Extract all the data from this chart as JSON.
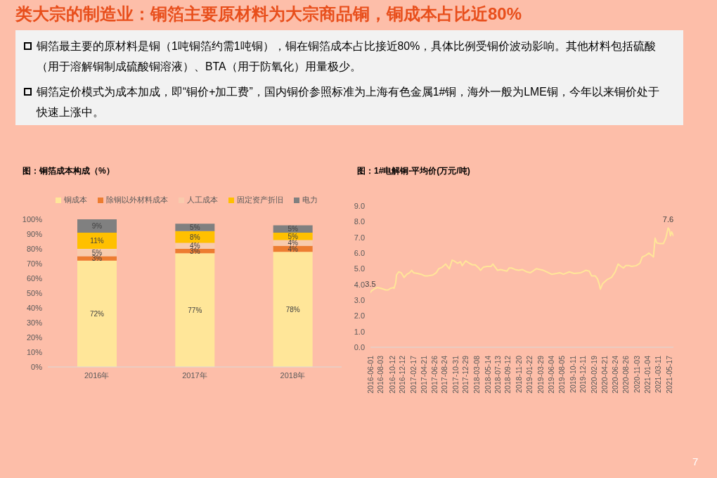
{
  "chart_data": [
    {
      "type": "other",
      "title": "类大宗的制造业：铜箔主要原材料为大宗商品铜，铜成本占比近80%",
      "annotations": [
        "铜箔最主要的原材料是铜（1吨铜箔约需1吨铜），铜在铜箔成本占比接近80%，具体比例受铜价波动影响。其他材料包括硫酸（用于溶解铜制成硫酸铜溶液）、BTA（用于防氧化）用量极少。",
        "铜箔定价模式为成本加成，即“铜价+加工费”，国内铜价参照标准为上海有色金属1#铜，海外一般为LME铜，今年以来铜价处于快速上涨中。",
        "7"
      ]
    },
    {
      "type": "bar",
      "title": "图：铜箔成本构成（%）",
      "categories": [
        "2016年",
        "2017年",
        "2018年"
      ],
      "stacked": true,
      "legend": "top",
      "series": [
        {
          "name": "铜成本",
          "color": "#ffe699",
          "values": [
            72,
            77,
            78
          ],
          "value_labels": [
            "72%",
            "77%",
            "78%"
          ]
        },
        {
          "name": "除铜以外材料成本",
          "color": "#ed7d31",
          "values": [
            3,
            3,
            4
          ],
          "value_labels": [
            "3%",
            "3%",
            "4%"
          ]
        },
        {
          "name": "人工成本",
          "color": "#f8cbad",
          "values": [
            5,
            4,
            4
          ],
          "value_labels": [
            "5%",
            "4%",
            "4%"
          ]
        },
        {
          "name": "固定资产折旧",
          "color": "#ffc000",
          "values": [
            11,
            8,
            5
          ],
          "value_labels": [
            "11%",
            "8%",
            "5%"
          ]
        },
        {
          "name": "电力",
          "color": "#808080",
          "values": [
            9,
            5,
            5
          ],
          "value_labels": [
            "9%",
            "5%",
            "5%"
          ]
        }
      ],
      "ylim": [
        0,
        100
      ],
      "yticks": [
        {
          "value": 0,
          "label": "0%"
        },
        {
          "value": 10,
          "label": "10%"
        },
        {
          "value": 20,
          "label": "20%"
        },
        {
          "value": 30,
          "label": "30%"
        },
        {
          "value": 40,
          "label": "40%"
        },
        {
          "value": 50,
          "label": "50%"
        },
        {
          "value": 60,
          "label": "60%"
        },
        {
          "value": 70,
          "label": "70%"
        },
        {
          "value": 80,
          "label": "80%"
        },
        {
          "value": 90,
          "label": "90%"
        },
        {
          "value": 100,
          "label": "100%"
        }
      ]
    },
    {
      "type": "line",
      "title": "图：1#电解铜-平均价(万元/吨)",
      "x": [
        "2016-06-01",
        "2016-06-08",
        "2016-06-30",
        "2016-07-14",
        "2016-08-04",
        "2016-09-02",
        "2016-09-16",
        "2016-09-30",
        "2016-10-18",
        "2016-10-22",
        "2016-11-01",
        "2016-11-06",
        "2016-11-19",
        "2016-12-04",
        "2016-12-22",
        "2017-01-08",
        "2017-01-25",
        "2017-02-06",
        "2017-02-17",
        "2017-03-13",
        "2017-04-04",
        "2017-04-25",
        "2017-05-16",
        "2017-06-14",
        "2017-07-05",
        "2017-07-20",
        "2017-08-10",
        "2017-08-31",
        "2017-09-22",
        "2017-10-09",
        "2017-10-20",
        "2017-11-11",
        "2017-11-28",
        "2017-12-09",
        "2017-12-30",
        "2018-01-21",
        "2018-02-09",
        "2018-02-26",
        "2018-03-19",
        "2018-03-30",
        "2018-04-16",
        "2018-05-08",
        "2018-06-02",
        "2018-06-13",
        "2018-06-27",
        "2018-07-11",
        "2018-07-30",
        "2018-08-16",
        "2018-09-06",
        "2018-09-20",
        "2018-10-04",
        "2018-10-26",
        "2018-11-16",
        "2018-12-08",
        "2019-01-05",
        "2019-01-27",
        "2019-03-03",
        "2019-04-15",
        "2019-05-06",
        "2019-06-04",
        "2019-07-03",
        "2019-07-24",
        "2019-08-14",
        "2019-09-19",
        "2019-10-18",
        "2019-11-29",
        "2019-12-28",
        "2020-01-18",
        "2020-02-01",
        "2020-02-23",
        "2020-03-08",
        "2020-03-19",
        "2020-03-25",
        "2020-04-08",
        "2020-05-04",
        "2020-06-01",
        "2020-06-23",
        "2020-07-11",
        "2020-07-28",
        "2020-08-12",
        "2020-08-26",
        "2020-09-16",
        "2020-10-01",
        "2020-10-29",
        "2020-11-20",
        "2020-12-04",
        "2020-12-25",
        "2021-01-13",
        "2021-01-30",
        "2021-02-10",
        "2021-02-20",
        "2021-03-02",
        "2021-03-21",
        "2021-04-11",
        "2021-04-26",
        "2021-05-10",
        "2021-05-17",
        "2021-05-24",
        "2021-05-31",
        "2021-06-11"
      ],
      "series": [
        {
          "color": "#ffe699",
          "values": [
            3.5,
            3.6,
            3.75,
            3.8,
            3.75,
            3.65,
            3.65,
            3.75,
            3.8,
            3.75,
            4.1,
            4.6,
            4.8,
            4.75,
            4.45,
            4.65,
            4.75,
            4.9,
            4.75,
            4.7,
            4.65,
            4.55,
            4.55,
            4.6,
            4.75,
            5.0,
            5.1,
            5.3,
            5.0,
            5.55,
            5.5,
            5.35,
            5.45,
            5.2,
            5.5,
            5.35,
            5.25,
            5.25,
            5.05,
            4.9,
            5.1,
            5.15,
            5.15,
            5.3,
            5.1,
            4.9,
            4.95,
            4.9,
            4.85,
            5.05,
            5.05,
            4.95,
            4.9,
            4.95,
            4.8,
            4.75,
            5.0,
            4.9,
            4.8,
            4.65,
            4.7,
            4.75,
            4.65,
            4.8,
            4.7,
            4.75,
            4.9,
            4.85,
            4.55,
            4.55,
            4.35,
            4.0,
            3.7,
            4.05,
            4.3,
            4.45,
            4.8,
            5.3,
            5.15,
            5.05,
            5.2,
            5.2,
            5.15,
            5.2,
            5.35,
            5.75,
            5.85,
            6.0,
            5.85,
            5.75,
            6.95,
            6.65,
            6.6,
            6.6,
            6.95,
            7.6,
            7.5,
            7.1,
            7.35,
            7.1
          ],
          "value_labels": [
            "3.5",
            null,
            null,
            null,
            null,
            null,
            null,
            null,
            null,
            null,
            null,
            null,
            null,
            null,
            null,
            null,
            null,
            null,
            null,
            null,
            null,
            null,
            null,
            null,
            null,
            null,
            null,
            null,
            null,
            null,
            null,
            null,
            null,
            null,
            null,
            null,
            null,
            null,
            null,
            null,
            null,
            null,
            null,
            null,
            null,
            null,
            null,
            null,
            null,
            null,
            null,
            null,
            null,
            null,
            null,
            null,
            null,
            null,
            null,
            null,
            null,
            null,
            null,
            null,
            null,
            null,
            null,
            null,
            null,
            null,
            null,
            null,
            null,
            null,
            null,
            null,
            null,
            null,
            null,
            null,
            null,
            null,
            null,
            null,
            null,
            null,
            null,
            null,
            null,
            null,
            null,
            null,
            null,
            null,
            null,
            "7.6",
            null,
            null,
            null,
            null
          ]
        }
      ],
      "xlim": [
        "2016-06-01",
        "2021-06-11"
      ],
      "xticks": [
        "2016-06-01",
        "2016-08-03",
        "2016-10-12",
        "2016-12-12",
        "2017-02-17",
        "2017-04-21",
        "2017-06-26",
        "2017-08-24",
        "2017-10-31",
        "2017-12-29",
        "2018-03-08",
        "2018-05-14",
        "2018-07-13",
        "2018-09-12",
        "2018-11-20",
        "2019-01-22",
        "2019-03-29",
        "2019-06-04",
        "2019-08-05",
        "2019-10-11",
        "2019-12-11",
        "2020-02-19",
        "2020-04-21",
        "2020-06-24",
        "2020-08-26",
        "2020-11-03",
        "2021-01-04",
        "2021-03-11",
        "2021-05-17"
      ],
      "ylim": [
        0,
        9
      ],
      "yticks": [
        {
          "value": 0,
          "label": "0.0"
        },
        {
          "value": 1,
          "label": "1.0"
        },
        {
          "value": 2,
          "label": "2.0"
        },
        {
          "value": 3,
          "label": "3.0"
        },
        {
          "value": 4,
          "label": "4.0"
        },
        {
          "value": 5,
          "label": "5.0"
        },
        {
          "value": 6,
          "label": "6.0"
        },
        {
          "value": 7,
          "label": "7.0"
        },
        {
          "value": 8,
          "label": "8.0"
        },
        {
          "value": 9,
          "label": "9.0"
        }
      ]
    }
  ]
}
